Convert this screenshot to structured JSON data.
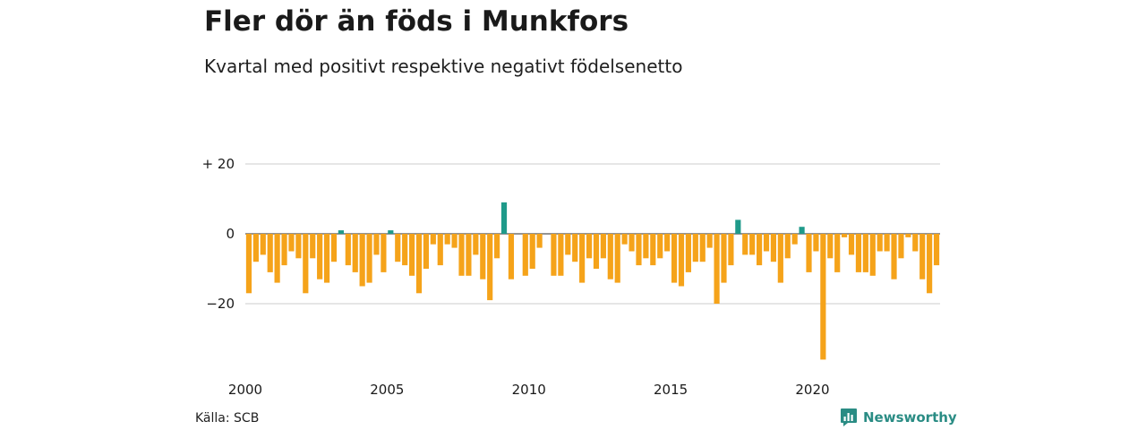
{
  "title": "Fler dör än föds i Munkfors",
  "subtitle": "Kvartal med positivt respektive negativt födelsenetto",
  "source": "Källa: SCB",
  "brand": {
    "name": "Newsworthy",
    "icon": "newsworthy-logo-icon"
  },
  "colors": {
    "positive": "#1f9a8a",
    "negative": "#f5a31a",
    "grid": "#dddddd",
    "brand": "#2a8c84"
  },
  "chart_data": {
    "type": "bar",
    "x_start": "2000 Q1",
    "values": [
      -17,
      -8,
      -6,
      -11,
      -14,
      -9,
      -5,
      -7,
      -17,
      -7,
      -13,
      -14,
      -8,
      1,
      -9,
      -11,
      -15,
      -14,
      -6,
      -11,
      1,
      -8,
      -9,
      -12,
      -17,
      -10,
      -3,
      -9,
      -3,
      -4,
      -12,
      -12,
      -6,
      -13,
      -19,
      -7,
      9,
      -13,
      0,
      -12,
      -10,
      -4,
      0,
      -12,
      -12,
      -6,
      -8,
      -14,
      -7,
      -10,
      -7,
      -13,
      -14,
      -3,
      -5,
      -9,
      -7,
      -9,
      -7,
      -5,
      -14,
      -15,
      -11,
      -8,
      -8,
      -4,
      -20,
      -14,
      -9,
      4,
      -6,
      -6,
      -9,
      -5,
      -8,
      -14,
      -7,
      -3,
      2,
      -11,
      -5,
      -36,
      -7,
      -11,
      -1,
      -6,
      -11,
      -11,
      -12,
      -5,
      -5,
      -13,
      -7,
      -1,
      -5,
      -13,
      -17,
      -9
    ],
    "yticks": [
      20,
      0,
      -20
    ],
    "ytick_labels": [
      "+ 20",
      "0",
      "−20"
    ],
    "xticks": [
      "2000",
      "2005",
      "2010",
      "2015",
      "2020"
    ],
    "ylim": [
      -37,
      21
    ],
    "xlabel": "",
    "ylabel": "",
    "grid": true,
    "legend": "none"
  }
}
